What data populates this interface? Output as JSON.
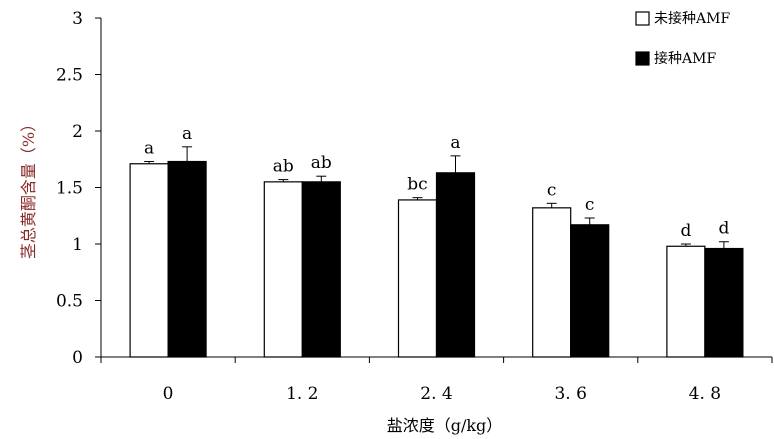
{
  "chart_data": {
    "type": "bar",
    "title": "",
    "xlabel": "盐浓度（g/kg）",
    "ylabel": "茎总黄酮含量（%）",
    "categories": [
      "0",
      "1.2",
      "2.4",
      "3.6",
      "4.8"
    ],
    "category_labels": [
      "0",
      "1. 2",
      "2. 4",
      "3. 6",
      "4. 8"
    ],
    "ylim": [
      0,
      3
    ],
    "yticks": [
      "0",
      "0.5",
      "1",
      "1.5",
      "2",
      "2.5",
      "3"
    ],
    "grid": false,
    "legend_position": "top-right",
    "series": [
      {
        "name": "未接种AMF",
        "fill": "#ffffff",
        "values": [
          1.71,
          1.55,
          1.39,
          1.32,
          0.98
        ],
        "errors": [
          0.02,
          0.02,
          0.02,
          0.04,
          0.02
        ],
        "labels": [
          "a",
          "ab",
          "bc",
          "c",
          "d"
        ]
      },
      {
        "name": "接种AMF",
        "fill": "#000000",
        "values": [
          1.73,
          1.55,
          1.63,
          1.17,
          0.96
        ],
        "errors": [
          0.13,
          0.05,
          0.15,
          0.06,
          0.06
        ],
        "labels": [
          "a",
          "ab",
          "a",
          "c",
          "d"
        ]
      }
    ]
  }
}
